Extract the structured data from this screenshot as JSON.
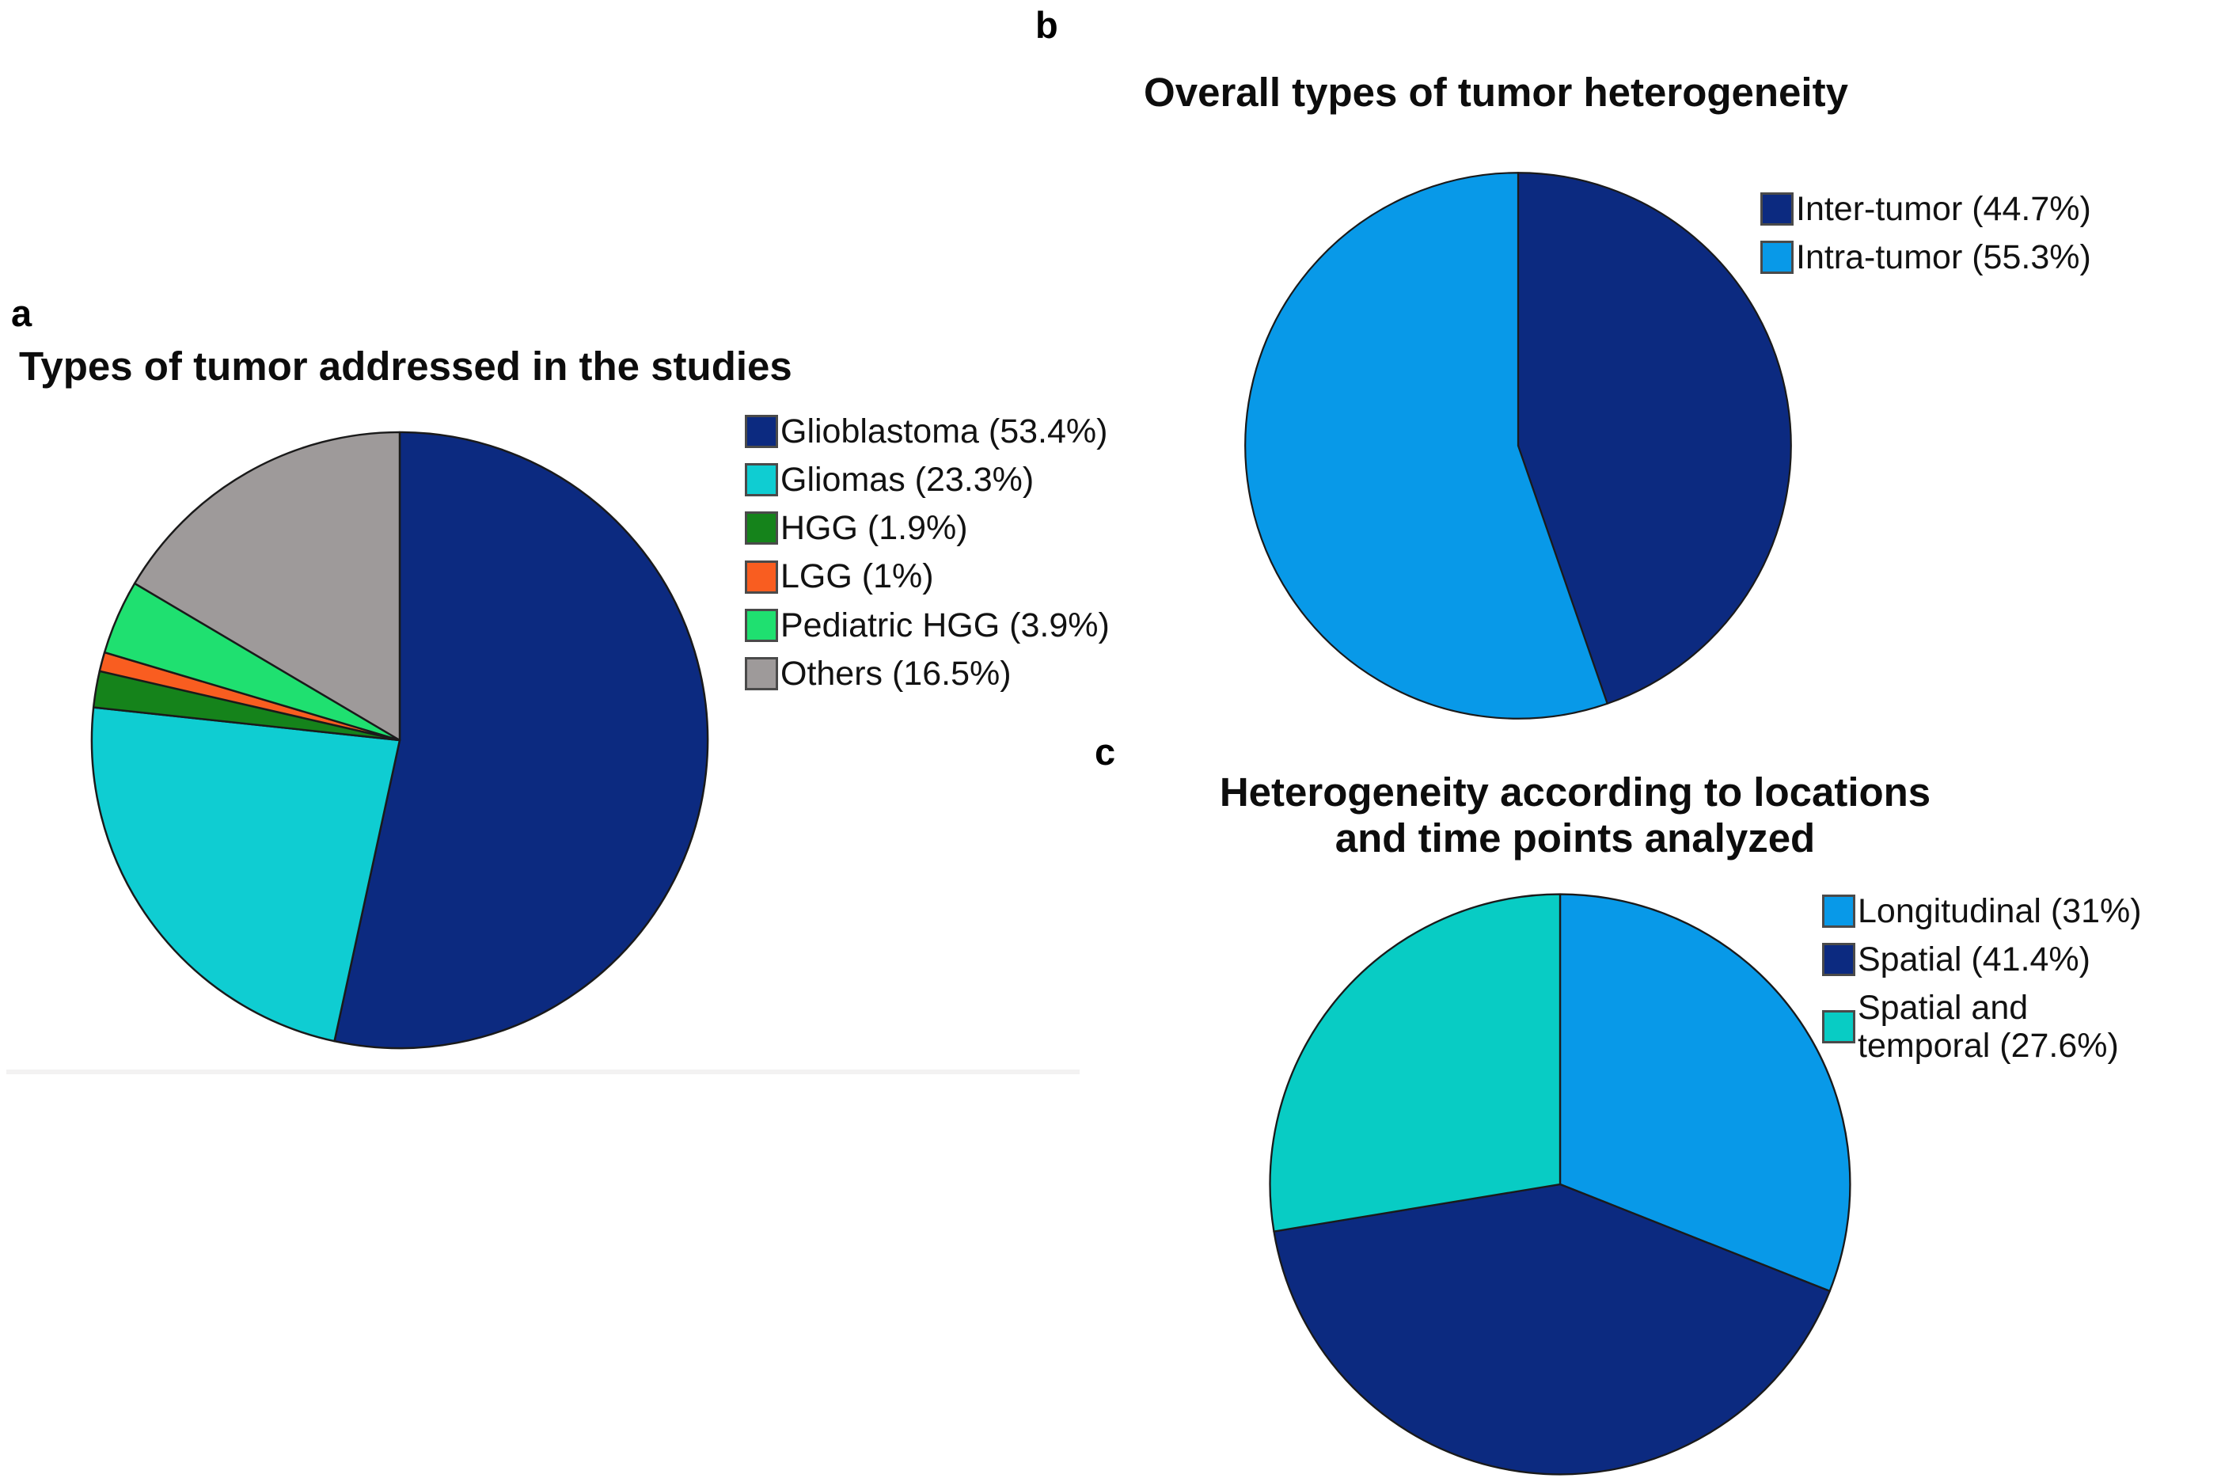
{
  "figure": {
    "background_color": "#ffffff",
    "divider_color": "#f3f2f2",
    "pie_outline_color": "#1a1a1a"
  },
  "chart_data": [
    {
      "id": "a",
      "type": "pie",
      "panel_label": "a",
      "title": "Types of tumor addressed in the studies",
      "title_lines": [
        "Types of tumor addressed in the studies"
      ],
      "start_angle_deg": 0,
      "direction": "clockwise",
      "legend_position": "right",
      "categories": [
        "Glioblastoma",
        "Gliomas",
        "HGG",
        "LGG",
        "Pediatric HGG",
        "Others"
      ],
      "values": [
        53.4,
        23.3,
        1.9,
        1,
        3.9,
        16.5
      ],
      "slices": [
        {
          "label": "Glioblastoma",
          "value_pct": 53.4,
          "color": "#0c2a80",
          "legend_lines": [
            "Glioblastoma (53.4%)"
          ]
        },
        {
          "label": "Gliomas",
          "value_pct": 23.3,
          "color": "#0fcdd2",
          "legend_lines": [
            "Gliomas (23.3%)"
          ]
        },
        {
          "label": "HGG",
          "value_pct": 1.9,
          "color": "#15831b",
          "legend_lines": [
            "HGG (1.9%)"
          ]
        },
        {
          "label": "LGG",
          "value_pct": 1,
          "color": "#f95d20",
          "legend_lines": [
            "LGG (1%)"
          ]
        },
        {
          "label": "Pediatric HGG",
          "value_pct": 3.9,
          "color": "#1fe070",
          "legend_lines": [
            "Pediatric HGG (3.9%)"
          ]
        },
        {
          "label": "Others",
          "value_pct": 16.5,
          "color": "#9e9a9a",
          "legend_lines": [
            "Others (16.5%)"
          ]
        }
      ]
    },
    {
      "id": "b",
      "type": "pie",
      "panel_label": "b",
      "title": "Overall types of tumor heterogeneity",
      "title_lines": [
        "Overall types of tumor heterogeneity"
      ],
      "start_angle_deg": 0,
      "direction": "clockwise",
      "legend_position": "right",
      "categories": [
        "Inter-tumor",
        "Intra-tumor"
      ],
      "values": [
        44.7,
        55.3
      ],
      "slices": [
        {
          "label": "Inter-tumor",
          "value_pct": 44.7,
          "color": "#0c2a80",
          "legend_lines": [
            "Inter-tumor (44.7%)"
          ]
        },
        {
          "label": "Intra-tumor",
          "value_pct": 55.3,
          "color": "#0899e8",
          "legend_lines": [
            "Intra-tumor (55.3%)"
          ]
        }
      ]
    },
    {
      "id": "c",
      "type": "pie",
      "panel_label": "c",
      "title": "Heterogeneity according to locations and time points analyzed",
      "title_lines": [
        "Heterogeneity according to locations",
        "and time points analyzed"
      ],
      "start_angle_deg": 0,
      "direction": "clockwise",
      "legend_position": "right",
      "categories": [
        "Longitudinal",
        "Spatial",
        "Spatial and temporal"
      ],
      "values": [
        31,
        41.4,
        27.6
      ],
      "slices": [
        {
          "label": "Longitudinal",
          "value_pct": 31,
          "color": "#0899e8",
          "legend_lines": [
            "Longitudinal (31%)"
          ]
        },
        {
          "label": "Spatial",
          "value_pct": 41.4,
          "color": "#0c2a80",
          "legend_lines": [
            "Spatial (41.4%)"
          ]
        },
        {
          "label": "Spatial and temporal",
          "value_pct": 27.6,
          "color": "#08ccc4",
          "legend_lines": [
            "Spatial and",
            "temporal (27.6%)"
          ]
        }
      ]
    }
  ]
}
